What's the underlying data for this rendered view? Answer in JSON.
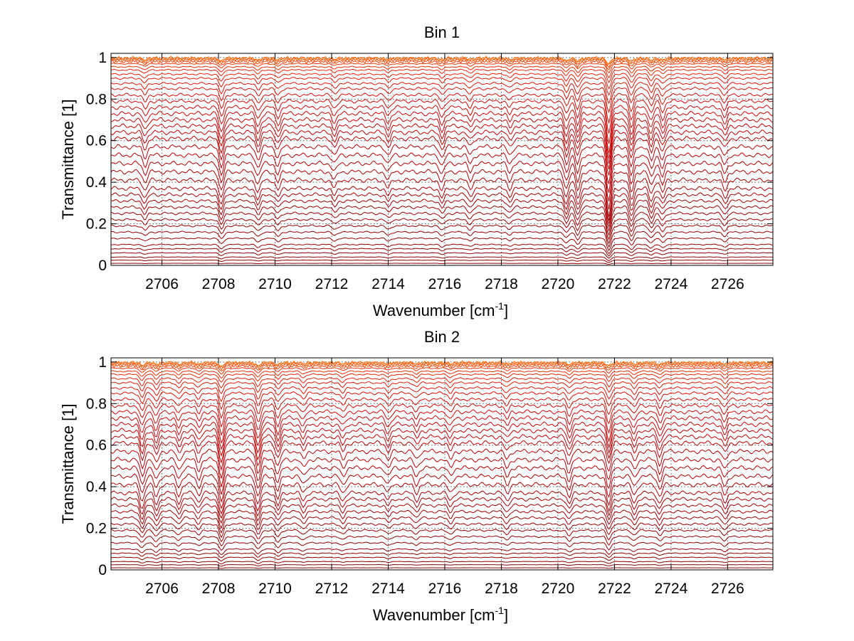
{
  "chart_data": [
    {
      "type": "line",
      "title": "Bin 1",
      "xlabel": "Wavenumber [cm",
      "xlabel_sup": "-1",
      "xlabel_end": "]",
      "ylabel": "Transmittance [1]",
      "xlim": [
        2704.2,
        2727.6
      ],
      "ylim": [
        0,
        1.02
      ],
      "xticks": [
        2706,
        2708,
        2710,
        2712,
        2714,
        2716,
        2718,
        2720,
        2722,
        2724,
        2726
      ],
      "yticks": [
        0,
        0.2,
        0.4,
        0.6,
        0.8,
        1
      ],
      "ytick_labels": [
        "0",
        "0.2",
        "0.4",
        "0.6",
        "0.8",
        "1"
      ],
      "grid": true,
      "series_count": 40,
      "baselines": [
        0.0,
        0.01,
        0.025,
        0.04,
        0.06,
        0.08,
        0.1,
        0.13,
        0.16,
        0.19,
        0.22,
        0.25,
        0.28,
        0.31,
        0.34,
        0.37,
        0.41,
        0.45,
        0.49,
        0.53,
        0.57,
        0.61,
        0.64,
        0.67,
        0.7,
        0.73,
        0.76,
        0.79,
        0.82,
        0.85,
        0.875,
        0.9,
        0.92,
        0.94,
        0.955,
        0.97,
        0.98,
        0.988,
        0.994,
        0.998
      ],
      "absorption_lines": [
        {
          "x": 2705.4,
          "depth": 0.05
        },
        {
          "x": 2708.1,
          "depth": 0.09
        },
        {
          "x": 2709.4,
          "depth": 0.06
        },
        {
          "x": 2710.1,
          "depth": 0.05
        },
        {
          "x": 2712.1,
          "depth": 0.04
        },
        {
          "x": 2714.0,
          "depth": 0.04
        },
        {
          "x": 2715.9,
          "depth": 0.05
        },
        {
          "x": 2716.9,
          "depth": 0.04
        },
        {
          "x": 2718.3,
          "depth": 0.04
        },
        {
          "x": 2720.3,
          "depth": 0.08
        },
        {
          "x": 2720.7,
          "depth": 0.09
        },
        {
          "x": 2721.8,
          "depth": 0.18
        },
        {
          "x": 2722.6,
          "depth": 0.1
        },
        {
          "x": 2723.3,
          "depth": 0.07
        },
        {
          "x": 2723.7,
          "depth": 0.06
        },
        {
          "x": 2725.9,
          "depth": 0.05
        }
      ]
    },
    {
      "type": "line",
      "title": "Bin 2",
      "xlabel": "Wavenumber [cm",
      "xlabel_sup": "-1",
      "xlabel_end": "]",
      "ylabel": "Transmittance [1]",
      "xlim": [
        2704.2,
        2727.6
      ],
      "ylim": [
        0,
        1.02
      ],
      "xticks": [
        2706,
        2708,
        2710,
        2712,
        2714,
        2716,
        2718,
        2720,
        2722,
        2724,
        2726
      ],
      "yticks": [
        0,
        0.2,
        0.4,
        0.6,
        0.8,
        1
      ],
      "ytick_labels": [
        "0",
        "0.2",
        "0.4",
        "0.6",
        "0.8",
        "1"
      ],
      "grid": true,
      "series_count": 40,
      "baselines": [
        0.0,
        0.01,
        0.025,
        0.04,
        0.06,
        0.08,
        0.1,
        0.13,
        0.16,
        0.19,
        0.22,
        0.25,
        0.28,
        0.31,
        0.34,
        0.37,
        0.41,
        0.45,
        0.49,
        0.53,
        0.57,
        0.61,
        0.64,
        0.67,
        0.7,
        0.73,
        0.76,
        0.79,
        0.82,
        0.85,
        0.875,
        0.9,
        0.92,
        0.94,
        0.955,
        0.97,
        0.98,
        0.988,
        0.994,
        0.998
      ],
      "absorption_lines": [
        {
          "x": 2705.3,
          "depth": 0.08
        },
        {
          "x": 2705.8,
          "depth": 0.06
        },
        {
          "x": 2706.6,
          "depth": 0.05
        },
        {
          "x": 2707.3,
          "depth": 0.05
        },
        {
          "x": 2708.1,
          "depth": 0.12
        },
        {
          "x": 2709.4,
          "depth": 0.1
        },
        {
          "x": 2710.1,
          "depth": 0.07
        },
        {
          "x": 2711.0,
          "depth": 0.04
        },
        {
          "x": 2712.4,
          "depth": 0.04
        },
        {
          "x": 2714.0,
          "depth": 0.04
        },
        {
          "x": 2715.0,
          "depth": 0.04
        },
        {
          "x": 2716.2,
          "depth": 0.04
        },
        {
          "x": 2718.2,
          "depth": 0.04
        },
        {
          "x": 2720.4,
          "depth": 0.06
        },
        {
          "x": 2721.8,
          "depth": 0.1
        },
        {
          "x": 2722.7,
          "depth": 0.05
        },
        {
          "x": 2723.6,
          "depth": 0.06
        },
        {
          "x": 2725.9,
          "depth": 0.05
        }
      ]
    }
  ]
}
